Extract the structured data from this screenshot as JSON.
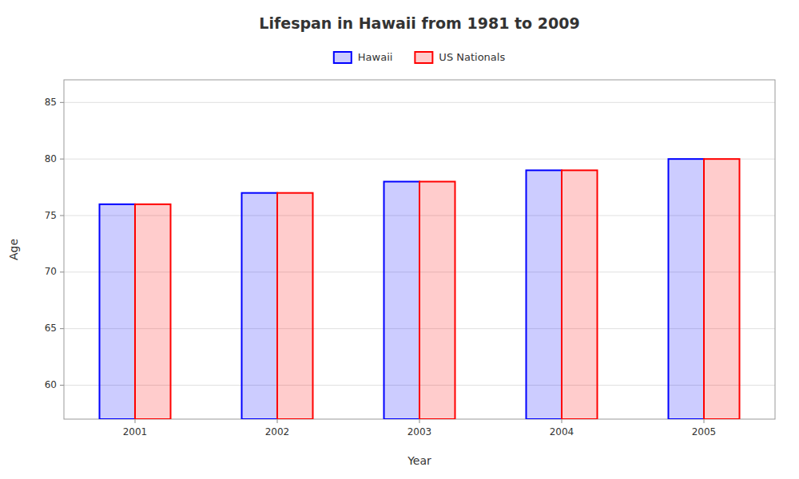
{
  "chart_data": {
    "type": "bar",
    "title": "Lifespan in Hawaii from 1981 to 2009",
    "xlabel": "Year",
    "ylabel": "Age",
    "categories": [
      "2001",
      "2002",
      "2003",
      "2004",
      "2005"
    ],
    "series": [
      {
        "name": "Hawaii",
        "color": "#0000ff",
        "values": [
          76,
          77,
          78,
          79,
          80
        ]
      },
      {
        "name": "US Nationals",
        "color": "#ff0000",
        "values": [
          76,
          77,
          78,
          79,
          80
        ]
      }
    ],
    "ylim": [
      57,
      87
    ],
    "yticks": [
      60,
      65,
      70,
      75,
      80,
      85
    ],
    "grid": true,
    "legend": "top"
  }
}
